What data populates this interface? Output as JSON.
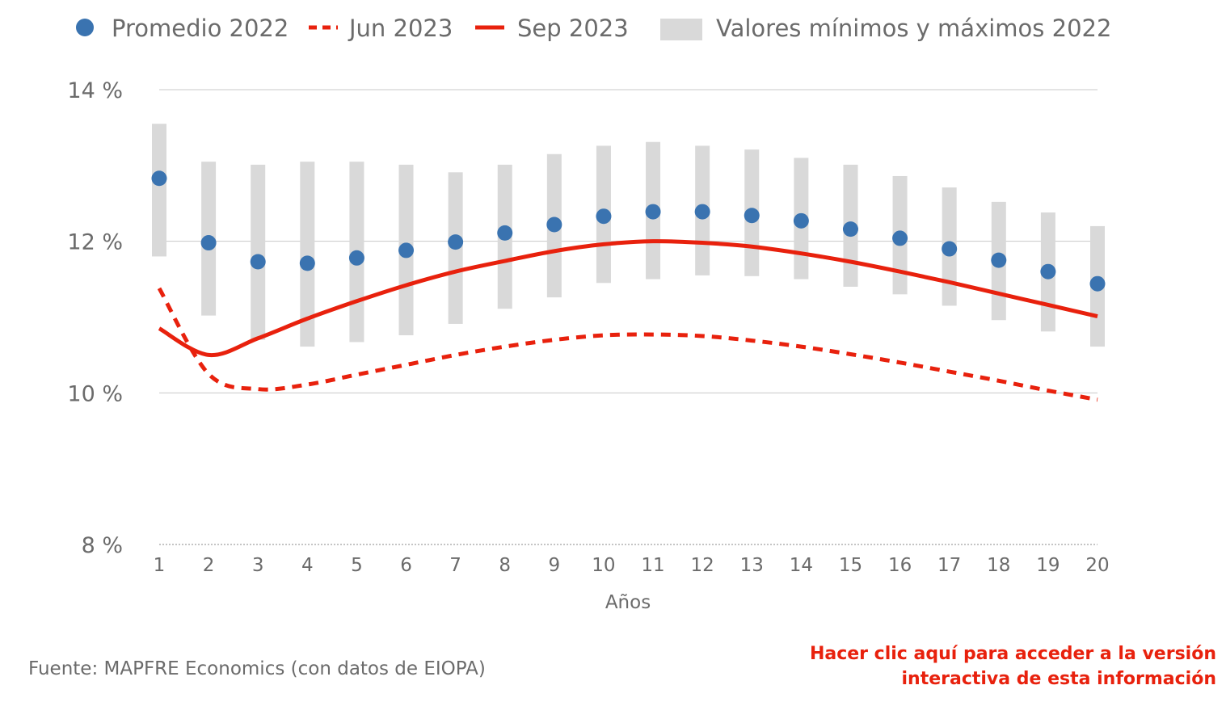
{
  "chart_data": {
    "type": "line",
    "title": "",
    "xlabel": "Años",
    "ylabel": "",
    "x": [
      1,
      2,
      3,
      4,
      5,
      6,
      7,
      8,
      9,
      10,
      11,
      12,
      13,
      14,
      15,
      16,
      17,
      18,
      19,
      20
    ],
    "ylim": [
      8,
      14
    ],
    "yticks": [
      8,
      10,
      12,
      14
    ],
    "ytick_labels": [
      "8 %",
      "10 %",
      "12 %",
      "14 %"
    ],
    "grid": true,
    "legend_position": "top",
    "series": [
      {
        "name": "Promedio 2022",
        "kind": "dots",
        "color": "#3a73b0",
        "values": [
          12.83,
          11.98,
          11.73,
          11.71,
          11.78,
          11.88,
          11.99,
          12.11,
          12.22,
          12.33,
          12.39,
          12.39,
          12.34,
          12.27,
          12.16,
          12.04,
          11.9,
          11.75,
          11.6,
          11.44
        ]
      },
      {
        "name": "Jun 2023",
        "kind": "dashed-line",
        "color": "#e8210d",
        "values": [
          11.38,
          10.25,
          10.05,
          10.11,
          10.24,
          10.37,
          10.5,
          10.61,
          10.7,
          10.76,
          10.77,
          10.75,
          10.69,
          10.61,
          10.51,
          10.4,
          10.28,
          10.16,
          10.03,
          9.91
        ]
      },
      {
        "name": "Sep 2023",
        "kind": "solid-line",
        "color": "#e8210d",
        "values": [
          10.85,
          10.5,
          10.72,
          10.98,
          11.21,
          11.42,
          11.6,
          11.74,
          11.87,
          11.96,
          12.0,
          11.98,
          11.93,
          11.84,
          11.73,
          11.6,
          11.46,
          11.31,
          11.16,
          11.01
        ]
      },
      {
        "name": "Valores mínimos y máximos 2022",
        "kind": "range-bars",
        "color": "#d9d9d9",
        "min": [
          11.8,
          11.02,
          10.7,
          10.61,
          10.67,
          10.76,
          10.91,
          11.11,
          11.26,
          11.45,
          11.5,
          11.55,
          11.54,
          11.5,
          11.4,
          11.3,
          11.15,
          10.96,
          10.81,
          10.61
        ],
        "max": [
          13.55,
          13.05,
          13.01,
          13.05,
          13.05,
          13.01,
          12.91,
          13.01,
          13.15,
          13.26,
          13.31,
          13.26,
          13.21,
          13.1,
          13.01,
          12.86,
          12.71,
          12.52,
          12.38,
          12.2
        ]
      }
    ]
  },
  "footer": {
    "source": "Fuente: MAPFRE Economics (con datos de EIOPA)",
    "link_line1": "Hacer clic aquí para acceder a la versión",
    "link_line2": "interactiva de esta información"
  }
}
